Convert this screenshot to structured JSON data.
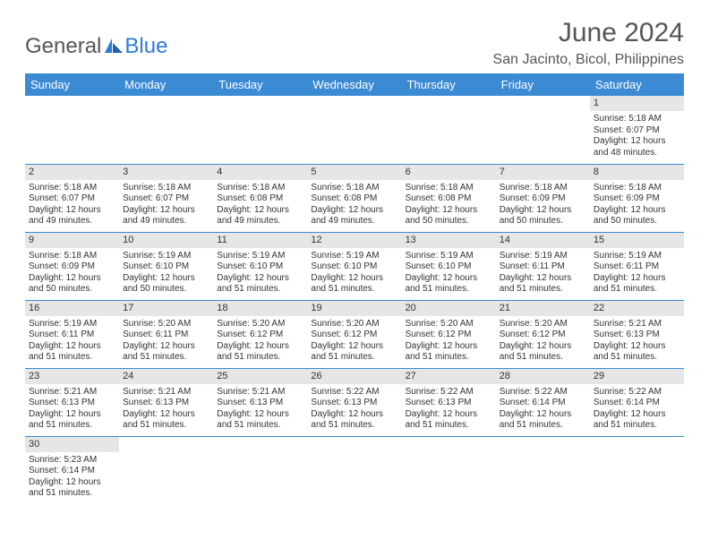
{
  "logo": {
    "text_general": "General",
    "text_blue": "Blue"
  },
  "header": {
    "month_title": "June 2024",
    "location": "San Jacinto, Bicol, Philippines"
  },
  "styling": {
    "header_bg": "#3a8ad4",
    "header_text": "#ffffff",
    "daynum_bg": "#e6e6e6",
    "border_color": "#3a8ad4",
    "body_text": "#333333",
    "title_color": "#555555",
    "logo_blue": "#2b7cd3",
    "font_family": "Arial",
    "month_title_fontsize": 30,
    "location_fontsize": 16,
    "weekday_fontsize": 13,
    "content_fontsize": 10
  },
  "weekdays": [
    "Sunday",
    "Monday",
    "Tuesday",
    "Wednesday",
    "Thursday",
    "Friday",
    "Saturday"
  ],
  "weeks": [
    [
      null,
      null,
      null,
      null,
      null,
      null,
      {
        "n": "1",
        "sr": "5:18 AM",
        "ss": "6:07 PM",
        "dl": "12 hours and 48 minutes."
      }
    ],
    [
      {
        "n": "2",
        "sr": "5:18 AM",
        "ss": "6:07 PM",
        "dl": "12 hours and 49 minutes."
      },
      {
        "n": "3",
        "sr": "5:18 AM",
        "ss": "6:07 PM",
        "dl": "12 hours and 49 minutes."
      },
      {
        "n": "4",
        "sr": "5:18 AM",
        "ss": "6:08 PM",
        "dl": "12 hours and 49 minutes."
      },
      {
        "n": "5",
        "sr": "5:18 AM",
        "ss": "6:08 PM",
        "dl": "12 hours and 49 minutes."
      },
      {
        "n": "6",
        "sr": "5:18 AM",
        "ss": "6:08 PM",
        "dl": "12 hours and 50 minutes."
      },
      {
        "n": "7",
        "sr": "5:18 AM",
        "ss": "6:09 PM",
        "dl": "12 hours and 50 minutes."
      },
      {
        "n": "8",
        "sr": "5:18 AM",
        "ss": "6:09 PM",
        "dl": "12 hours and 50 minutes."
      }
    ],
    [
      {
        "n": "9",
        "sr": "5:18 AM",
        "ss": "6:09 PM",
        "dl": "12 hours and 50 minutes."
      },
      {
        "n": "10",
        "sr": "5:19 AM",
        "ss": "6:10 PM",
        "dl": "12 hours and 50 minutes."
      },
      {
        "n": "11",
        "sr": "5:19 AM",
        "ss": "6:10 PM",
        "dl": "12 hours and 51 minutes."
      },
      {
        "n": "12",
        "sr": "5:19 AM",
        "ss": "6:10 PM",
        "dl": "12 hours and 51 minutes."
      },
      {
        "n": "13",
        "sr": "5:19 AM",
        "ss": "6:10 PM",
        "dl": "12 hours and 51 minutes."
      },
      {
        "n": "14",
        "sr": "5:19 AM",
        "ss": "6:11 PM",
        "dl": "12 hours and 51 minutes."
      },
      {
        "n": "15",
        "sr": "5:19 AM",
        "ss": "6:11 PM",
        "dl": "12 hours and 51 minutes."
      }
    ],
    [
      {
        "n": "16",
        "sr": "5:19 AM",
        "ss": "6:11 PM",
        "dl": "12 hours and 51 minutes."
      },
      {
        "n": "17",
        "sr": "5:20 AM",
        "ss": "6:11 PM",
        "dl": "12 hours and 51 minutes."
      },
      {
        "n": "18",
        "sr": "5:20 AM",
        "ss": "6:12 PM",
        "dl": "12 hours and 51 minutes."
      },
      {
        "n": "19",
        "sr": "5:20 AM",
        "ss": "6:12 PM",
        "dl": "12 hours and 51 minutes."
      },
      {
        "n": "20",
        "sr": "5:20 AM",
        "ss": "6:12 PM",
        "dl": "12 hours and 51 minutes."
      },
      {
        "n": "21",
        "sr": "5:20 AM",
        "ss": "6:12 PM",
        "dl": "12 hours and 51 minutes."
      },
      {
        "n": "22",
        "sr": "5:21 AM",
        "ss": "6:13 PM",
        "dl": "12 hours and 51 minutes."
      }
    ],
    [
      {
        "n": "23",
        "sr": "5:21 AM",
        "ss": "6:13 PM",
        "dl": "12 hours and 51 minutes."
      },
      {
        "n": "24",
        "sr": "5:21 AM",
        "ss": "6:13 PM",
        "dl": "12 hours and 51 minutes."
      },
      {
        "n": "25",
        "sr": "5:21 AM",
        "ss": "6:13 PM",
        "dl": "12 hours and 51 minutes."
      },
      {
        "n": "26",
        "sr": "5:22 AM",
        "ss": "6:13 PM",
        "dl": "12 hours and 51 minutes."
      },
      {
        "n": "27",
        "sr": "5:22 AM",
        "ss": "6:13 PM",
        "dl": "12 hours and 51 minutes."
      },
      {
        "n": "28",
        "sr": "5:22 AM",
        "ss": "6:14 PM",
        "dl": "12 hours and 51 minutes."
      },
      {
        "n": "29",
        "sr": "5:22 AM",
        "ss": "6:14 PM",
        "dl": "12 hours and 51 minutes."
      }
    ],
    [
      {
        "n": "30",
        "sr": "5:23 AM",
        "ss": "6:14 PM",
        "dl": "12 hours and 51 minutes."
      },
      null,
      null,
      null,
      null,
      null,
      null
    ]
  ],
  "labels": {
    "sunrise": "Sunrise:",
    "sunset": "Sunset:",
    "daylight": "Daylight:"
  }
}
